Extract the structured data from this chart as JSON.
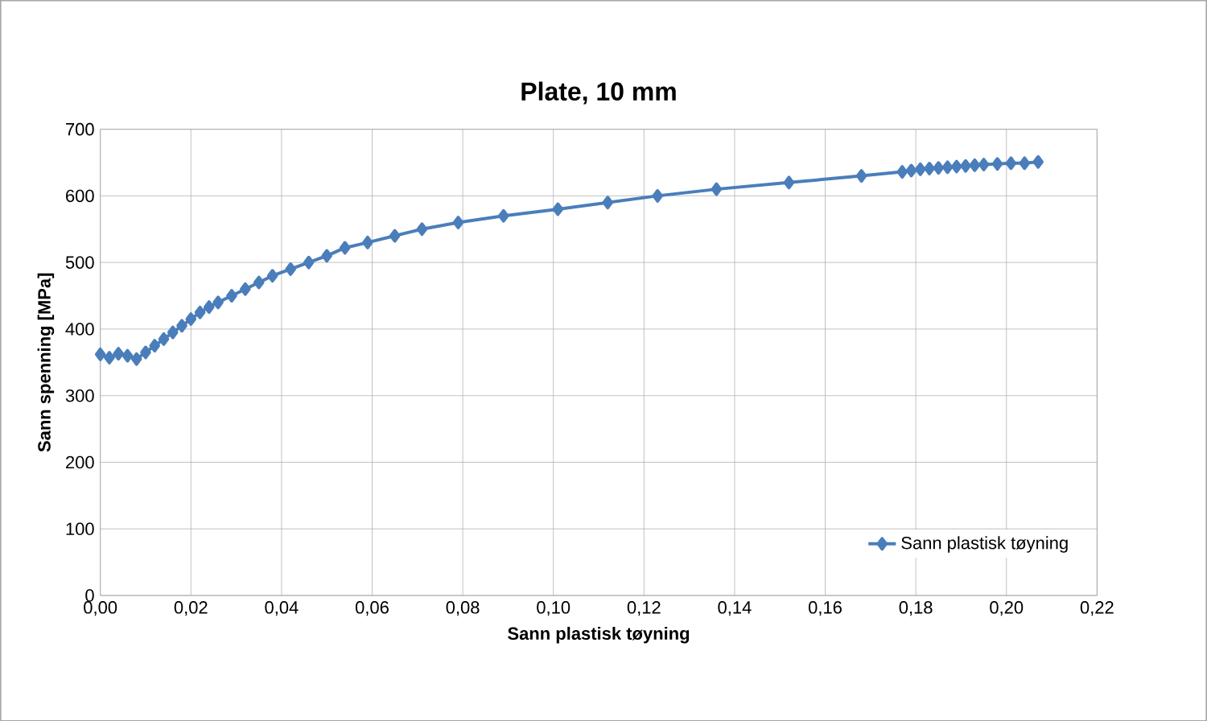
{
  "chart_data": {
    "type": "line",
    "title": "Plate, 10 mm",
    "xlabel": "Sann plastisk tøyning",
    "ylabel": "Sann spenning [MPa]",
    "xlim": [
      0,
      0.22
    ],
    "xticks": [
      {
        "value": 0,
        "label": "0,00"
      },
      {
        "value": 0.02,
        "label": "0,02"
      },
      {
        "value": 0.04,
        "label": "0,04"
      },
      {
        "value": 0.06,
        "label": "0,06"
      },
      {
        "value": 0.08,
        "label": "0,08"
      },
      {
        "value": 0.1,
        "label": "0,10"
      },
      {
        "value": 0.12,
        "label": "0,12"
      },
      {
        "value": 0.14,
        "label": "0,14"
      },
      {
        "value": 0.16,
        "label": "0,16"
      },
      {
        "value": 0.18,
        "label": "0,18"
      },
      {
        "value": 0.2,
        "label": "0,20"
      },
      {
        "value": 0.22,
        "label": "0,22"
      }
    ],
    "ylim": [
      0,
      700
    ],
    "yticks": [
      0,
      100,
      200,
      300,
      400,
      500,
      600,
      700
    ],
    "grid": true,
    "legend": "bottom right",
    "marker": "diamond",
    "line_style": "solid",
    "series": [
      {
        "name": "Sann plastisk tøyning",
        "color": "#4a7ebb",
        "x": [
          0,
          0.002,
          0.004,
          0.006,
          0.008,
          0.01,
          0.012,
          0.014,
          0.016,
          0.018,
          0.02,
          0.022,
          0.024,
          0.026,
          0.029,
          0.032,
          0.035,
          0.038,
          0.042,
          0.046,
          0.05,
          0.054,
          0.059,
          0.065,
          0.071,
          0.079,
          0.089,
          0.101,
          0.112,
          0.123,
          0.136,
          0.152,
          0.168,
          0.177,
          0.179,
          0.181,
          0.183,
          0.185,
          0.187,
          0.189,
          0.191,
          0.193,
          0.195,
          0.198,
          0.201,
          0.204,
          0.207
        ],
        "values": [
          362,
          357,
          363,
          360,
          355,
          365,
          375,
          385,
          395,
          405,
          415,
          425,
          433,
          440,
          450,
          460,
          470,
          480,
          490,
          500,
          510,
          522,
          530,
          540,
          550,
          560,
          570,
          580,
          590,
          600,
          610,
          620,
          630,
          636,
          638,
          640,
          641,
          642,
          643,
          644,
          645,
          646,
          647,
          648,
          649,
          649,
          651
        ]
      }
    ]
  }
}
